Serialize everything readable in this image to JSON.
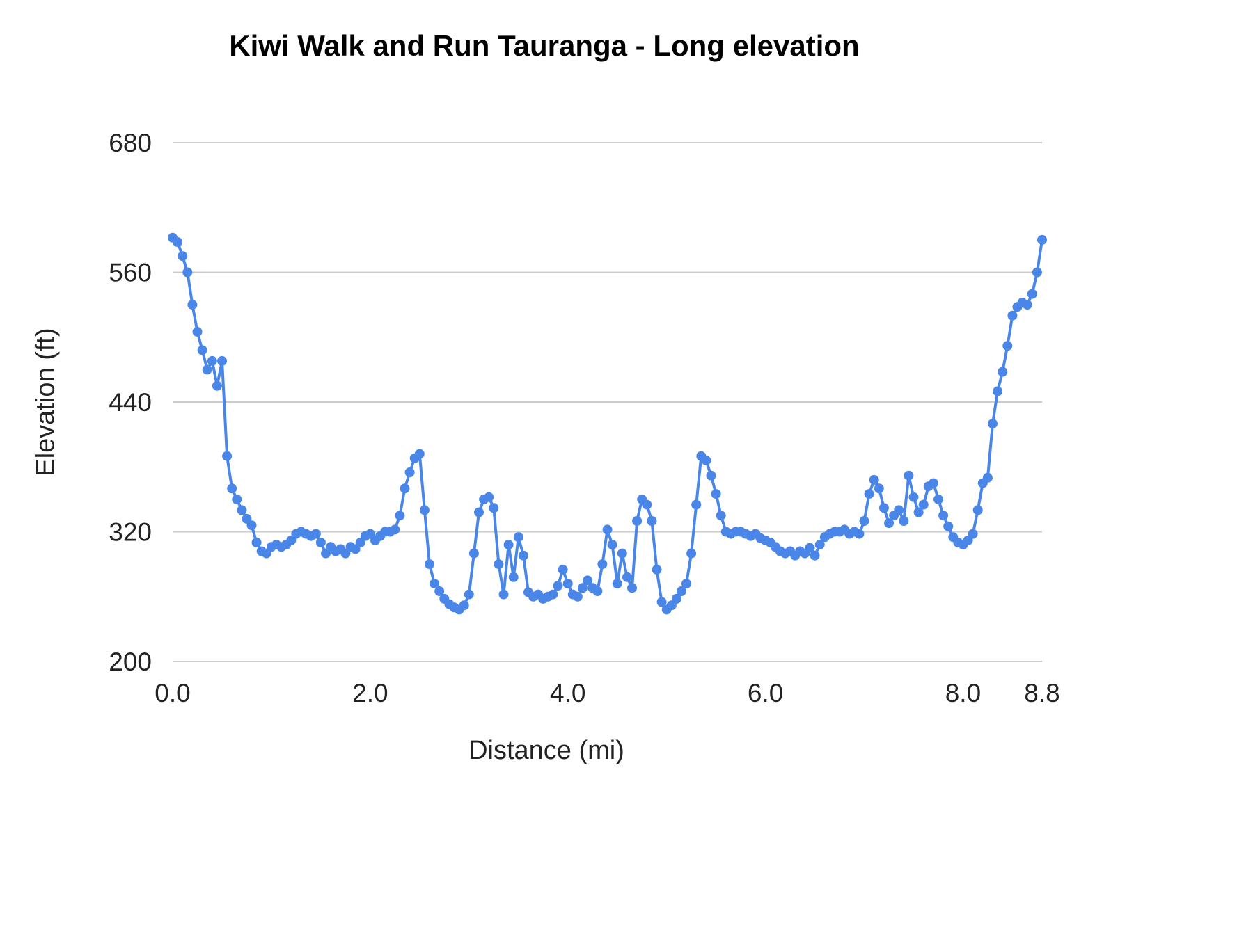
{
  "chart_data": {
    "type": "line",
    "title": "Kiwi Walk and Run Tauranga - Long elevation",
    "xlabel": "Distance (mi)",
    "ylabel": "Elevation (ft)",
    "xlim": [
      0,
      8.8
    ],
    "ylim": [
      200,
      680
    ],
    "x_ticks": [
      0.0,
      2.0,
      4.0,
      6.0,
      8.0,
      8.8
    ],
    "x_tick_labels": [
      "0.0",
      "2.0",
      "4.0",
      "6.0",
      "8.0",
      "8.8"
    ],
    "y_ticks": [
      200,
      320,
      440,
      560,
      680
    ],
    "y_tick_labels": [
      "200",
      "320",
      "440",
      "560",
      "680"
    ],
    "grid": "horizontal",
    "legend": "none",
    "colors": {
      "line": "#4a86e8",
      "marker": "#4a86e8",
      "grid": "#cccccc",
      "tick_text": "#222222",
      "title_text": "#000000",
      "background": "#ffffff"
    },
    "series": [
      {
        "name": "Elevation",
        "x": [
          0,
          0.05,
          0.1,
          0.15,
          0.2,
          0.25,
          0.3,
          0.35,
          0.4,
          0.45,
          0.5,
          0.55,
          0.6,
          0.65,
          0.7,
          0.75,
          0.8,
          0.85,
          0.9,
          0.95,
          1,
          1.05,
          1.1,
          1.15,
          1.2,
          1.25,
          1.3,
          1.35,
          1.4,
          1.45,
          1.5,
          1.55,
          1.6,
          1.65,
          1.7,
          1.75,
          1.8,
          1.85,
          1.9,
          1.95,
          2,
          2.05,
          2.1,
          2.15,
          2.2,
          2.25,
          2.3,
          2.35,
          2.4,
          2.45,
          2.5,
          2.55,
          2.6,
          2.65,
          2.7,
          2.75,
          2.8,
          2.85,
          2.9,
          2.95,
          3,
          3.05,
          3.1,
          3.15,
          3.2,
          3.25,
          3.3,
          3.35,
          3.4,
          3.45,
          3.5,
          3.55,
          3.6,
          3.65,
          3.7,
          3.75,
          3.8,
          3.85,
          3.9,
          3.95,
          4,
          4.05,
          4.1,
          4.15,
          4.2,
          4.25,
          4.3,
          4.35,
          4.4,
          4.45,
          4.5,
          4.55,
          4.6,
          4.65,
          4.7,
          4.75,
          4.8,
          4.85,
          4.9,
          4.95,
          5,
          5.05,
          5.1,
          5.15,
          5.2,
          5.25,
          5.3,
          5.35,
          5.4,
          5.45,
          5.5,
          5.55,
          5.6,
          5.65,
          5.7,
          5.75,
          5.8,
          5.85,
          5.9,
          5.95,
          6,
          6.05,
          6.1,
          6.15,
          6.2,
          6.25,
          6.3,
          6.35,
          6.4,
          6.45,
          6.5,
          6.55,
          6.6,
          6.65,
          6.7,
          6.75,
          6.8,
          6.85,
          6.9,
          6.95,
          7,
          7.05,
          7.1,
          7.15,
          7.2,
          7.25,
          7.3,
          7.35,
          7.4,
          7.45,
          7.5,
          7.55,
          7.6,
          7.65,
          7.7,
          7.75,
          7.8,
          7.85,
          7.9,
          7.95,
          8,
          8.05,
          8.1,
          8.15,
          8.2,
          8.25,
          8.3,
          8.35,
          8.4,
          8.45,
          8.5,
          8.55,
          8.6,
          8.65,
          8.7,
          8.75,
          8.8
        ],
        "y": [
          592,
          588,
          575,
          560,
          530,
          505,
          488,
          470,
          478,
          455,
          478,
          390,
          360,
          350,
          340,
          332,
          326,
          310,
          302,
          300,
          306,
          308,
          306,
          308,
          312,
          318,
          320,
          318,
          316,
          318,
          310,
          300,
          306,
          302,
          304,
          300,
          306,
          304,
          310,
          316,
          318,
          312,
          316,
          320,
          320,
          322,
          335,
          360,
          375,
          388,
          392,
          340,
          290,
          272,
          265,
          258,
          253,
          250,
          248,
          252,
          262,
          300,
          338,
          350,
          352,
          342,
          290,
          262,
          308,
          278,
          315,
          298,
          264,
          260,
          262,
          258,
          260,
          262,
          270,
          285,
          272,
          262,
          260,
          268,
          275,
          268,
          265,
          290,
          322,
          308,
          272,
          300,
          278,
          268,
          330,
          350,
          345,
          330,
          285,
          255,
          248,
          252,
          258,
          265,
          272,
          300,
          345,
          390,
          386,
          372,
          355,
          335,
          320,
          318,
          320,
          320,
          318,
          316,
          318,
          314,
          312,
          310,
          306,
          302,
          300,
          302,
          298,
          302,
          300,
          305,
          298,
          308,
          315,
          318,
          320,
          320,
          322,
          318,
          320,
          318,
          330,
          355,
          368,
          360,
          342,
          328,
          335,
          340,
          330,
          372,
          352,
          338,
          345,
          362,
          365,
          350,
          335,
          325,
          315,
          310,
          308,
          312,
          318,
          340,
          365,
          370,
          420,
          450,
          468,
          492,
          520,
          528,
          532,
          530,
          540,
          560,
          590
        ]
      }
    ]
  }
}
